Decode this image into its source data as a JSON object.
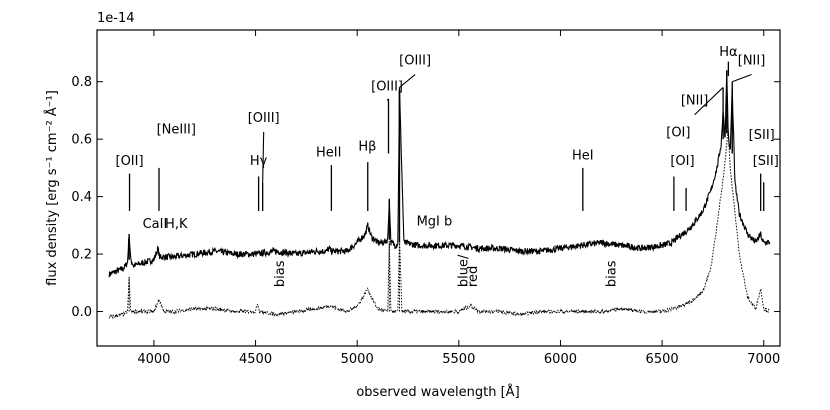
{
  "chart_data": {
    "type": "line",
    "xlabel": "observed wavelength [Å]",
    "ylabel": "flux density [erg s⁻¹ cm⁻² Å⁻¹]",
    "offset_text": "1e-14",
    "xlim": [
      3720,
      7080
    ],
    "ylim": [
      -0.12,
      0.98
    ],
    "xticks": [
      4000,
      4500,
      5000,
      5500,
      6000,
      6500,
      7000
    ],
    "yticks": [
      0.0,
      0.2,
      0.4,
      0.6,
      0.8
    ],
    "ytick_labels": [
      "0.0",
      "0.2",
      "0.4",
      "0.6",
      "0.8"
    ],
    "series": [
      {
        "style": "solid",
        "x": [
          3780,
          3850,
          3870,
          3878,
          3886,
          3900,
          3950,
          4000,
          4020,
          4028,
          4040,
          4100,
          4200,
          4300,
          4400,
          4500,
          4600,
          4700,
          4800,
          4850,
          4862,
          4872,
          4900,
          4950,
          5000,
          5040,
          5052,
          5070,
          5100,
          5130,
          5150,
          5158,
          5166,
          5190,
          5200,
          5208,
          5230,
          5300,
          5400,
          5500,
          5600,
          5700,
          5800,
          5900,
          6000,
          6100,
          6200,
          6300,
          6400,
          6500,
          6550,
          6580,
          6620,
          6660,
          6700,
          6740,
          6770,
          6790,
          6800,
          6810,
          6818,
          6825,
          6835,
          6845,
          6858,
          6880,
          6920,
          6960,
          6985,
          6995,
          7000,
          7030
        ],
        "y": [
          0.13,
          0.15,
          0.17,
          0.27,
          0.18,
          0.16,
          0.17,
          0.18,
          0.22,
          0.19,
          0.19,
          0.19,
          0.2,
          0.21,
          0.2,
          0.2,
          0.21,
          0.2,
          0.21,
          0.21,
          0.22,
          0.21,
          0.21,
          0.21,
          0.24,
          0.27,
          0.3,
          0.26,
          0.24,
          0.24,
          0.25,
          0.39,
          0.24,
          0.23,
          0.24,
          0.77,
          0.24,
          0.23,
          0.23,
          0.23,
          0.22,
          0.22,
          0.21,
          0.21,
          0.22,
          0.23,
          0.24,
          0.23,
          0.22,
          0.23,
          0.24,
          0.26,
          0.28,
          0.31,
          0.35,
          0.42,
          0.5,
          0.58,
          0.7,
          0.6,
          0.84,
          0.62,
          0.55,
          0.78,
          0.45,
          0.34,
          0.27,
          0.24,
          0.27,
          0.24,
          0.24,
          0.24
        ]
      },
      {
        "style": "dotted",
        "x": [
          3780,
          3850,
          3870,
          3878,
          3886,
          3950,
          4000,
          4025,
          4050,
          4100,
          4200,
          4300,
          4400,
          4500,
          4510,
          4520,
          4600,
          4700,
          4800,
          4870,
          4900,
          4950,
          5000,
          5030,
          5050,
          5070,
          5100,
          5150,
          5158,
          5166,
          5180,
          5200,
          5208,
          5220,
          5300,
          5400,
          5500,
          5560,
          5600,
          5700,
          5800,
          5900,
          6000,
          6100,
          6200,
          6300,
          6400,
          6500,
          6600,
          6650,
          6700,
          6740,
          6770,
          6800,
          6815,
          6825,
          6835,
          6850,
          6880,
          6920,
          6960,
          6985,
          7000,
          7030
        ],
        "y": [
          -0.02,
          -0.01,
          0.0,
          0.12,
          0.0,
          0.0,
          0.0,
          0.04,
          0.0,
          0.0,
          0.01,
          0.01,
          0.0,
          0.0,
          0.03,
          0.0,
          -0.01,
          0.0,
          0.01,
          0.02,
          0.01,
          0.0,
          0.02,
          0.05,
          0.08,
          0.05,
          0.01,
          0.0,
          0.24,
          0.0,
          0.0,
          0.0,
          0.26,
          0.0,
          0.0,
          0.0,
          0.0,
          0.02,
          0.0,
          0.0,
          -0.01,
          0.0,
          0.0,
          0.0,
          0.0,
          0.01,
          0.0,
          0.0,
          0.02,
          0.04,
          0.07,
          0.15,
          0.3,
          0.46,
          0.56,
          0.64,
          0.5,
          0.4,
          0.2,
          0.05,
          0.01,
          0.08,
          0.01,
          0.0
        ]
      }
    ],
    "lines": [
      {
        "label": "[OII]",
        "x": 3880,
        "y0": 0.35,
        "y1": 0.48,
        "lx": 3880,
        "ly": 0.51
      },
      {
        "label": "[NeIII]",
        "x": 4025,
        "y0": 0.35,
        "y1": 0.5,
        "lx": 4110,
        "ly": 0.62
      },
      {
        "label": "H",
        "greek": "γ",
        "x": 4515,
        "y0": 0.35,
        "y1": 0.47,
        "lx": 4515,
        "ly": 0.51
      },
      {
        "label": "[OIII]",
        "x": 4535,
        "y0": 0.35,
        "y1": 0.45,
        "lx": 4540,
        "ly": 0.66
      },
      {
        "label": "HeII",
        "x": 4873,
        "y0": 0.35,
        "y1": 0.51,
        "lx": 4860,
        "ly": 0.54
      },
      {
        "label": "H",
        "greek": "β",
        "x": 5052,
        "y0": 0.35,
        "y1": 0.52,
        "lx": 5050,
        "ly": 0.56
      },
      {
        "label": "[OIII]",
        "x": 5154,
        "y0": 0.55,
        "y1": 0.74,
        "lx": 5147,
        "ly": 0.77
      },
      {
        "label": "[OIII]",
        "x": 5208,
        "y0": 0.69,
        "y1": 0.78,
        "lx": 5285,
        "ly": 0.86
      },
      {
        "label": "HeI",
        "x": 6110,
        "y0": 0.35,
        "y1": 0.5,
        "lx": 6110,
        "ly": 0.53
      },
      {
        "label": "[OI]",
        "x": 6558,
        "y0": 0.35,
        "y1": 0.47,
        "lx": 6580,
        "ly": 0.61
      },
      {
        "label": "[OI]",
        "x": 6618,
        "y0": 0.35,
        "y1": 0.43,
        "lx": 6600,
        "ly": 0.51
      },
      {
        "label": "H",
        "greek": "α",
        "x": 6826,
        "y0": 0.87,
        "y1": 0.82,
        "lx": 6826,
        "ly": 0.89
      },
      {
        "label": "[NII]",
        "x": 6800,
        "y0": 0.7,
        "y1": 0.78,
        "lx": 6660,
        "ly": 0.72
      },
      {
        "label": "[NII]",
        "x": 6845,
        "y0": 0.72,
        "y1": 0.8,
        "lx": 6940,
        "ly": 0.86
      },
      {
        "label": "[SII]",
        "x": 6985,
        "y0": 0.35,
        "y1": 0.48,
        "lx": 7010,
        "ly": 0.51
      },
      {
        "label": "[SII]",
        "x": 7000,
        "y0": 0.35,
        "y1": 0.45,
        "lx": 6990,
        "ly": 0.6
      }
    ],
    "annotations": [
      {
        "text": "CaII",
        "x": 4005,
        "y": 0.29,
        "rotation": 0
      },
      {
        "text": "H,K",
        "x": 4110,
        "y": 0.29,
        "rotation": 0
      },
      {
        "text": "MgI b",
        "x": 5380,
        "y": 0.3,
        "rotation": 0
      },
      {
        "text": "bias",
        "x": 4640,
        "y": 0.085,
        "rotation": -90
      },
      {
        "text": "blue/",
        "x": 5542,
        "y": 0.085,
        "rotation": -90
      },
      {
        "text": "red",
        "x": 5590,
        "y": 0.085,
        "rotation": -90
      },
      {
        "text": "bias",
        "x": 6270,
        "y": 0.085,
        "rotation": -90
      }
    ]
  }
}
